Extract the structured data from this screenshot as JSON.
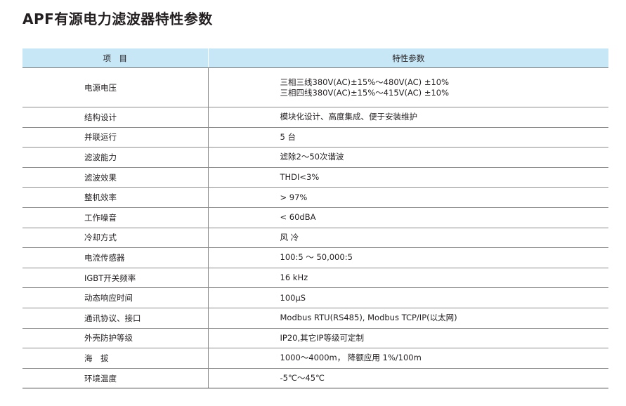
{
  "title": "APF有源电力滤波器特性参数",
  "table": {
    "headers": [
      "项　目",
      "特性参数"
    ],
    "rows": [
      {
        "label": "电源电压",
        "values": [
          "三相三线380V(AC)±15%～480V(AC) ±10%",
          "三相四线380V(AC)±15%～415V(AC) ±10%"
        ]
      },
      {
        "label": "结构设计",
        "values": [
          "模块化设计、高度集成、便于安装维护"
        ]
      },
      {
        "label": "并联运行",
        "values": [
          "5  台"
        ]
      },
      {
        "label": "滤波能力",
        "values": [
          "滤除2～50次谐波"
        ]
      },
      {
        "label": "滤波效果",
        "values": [
          "THDI<3%"
        ]
      },
      {
        "label": "整机效率",
        "values": [
          "> 97%"
        ]
      },
      {
        "label": "工作噪音",
        "values": [
          "< 60dBA"
        ]
      },
      {
        "label": "冷却方式",
        "values": [
          "风   冷"
        ]
      },
      {
        "label": "电流传感器",
        "values": [
          "100:5 ～  50,000:5"
        ]
      },
      {
        "label": "IGBT开关频率",
        "values": [
          "16 kHz"
        ]
      },
      {
        "label": "动态响应时间",
        "values": [
          "100μS"
        ]
      },
      {
        "label": "通讯协议、接口",
        "values": [
          "Modbus RTU(RS485), Modbus TCP/IP(以太网)"
        ]
      },
      {
        "label": "外壳防护等级",
        "values": [
          "IP20,其它IP等级可定制"
        ]
      },
      {
        "label": "海　拔",
        "values": [
          "1000～4000m， 降额应用 1%/100m"
        ]
      },
      {
        "label": "环境温度",
        "values": [
          "-5℃～45℃"
        ]
      }
    ]
  }
}
